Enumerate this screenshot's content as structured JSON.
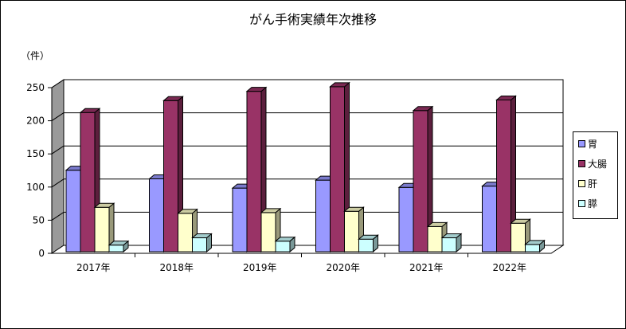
{
  "chart_data": {
    "type": "bar",
    "title": "がん手術実績年次推移",
    "y_unit": "（件）",
    "categories": [
      "2017年",
      "2018年",
      "2019年",
      "2020年",
      "2021年",
      "2022年"
    ],
    "series": [
      {
        "name": "胃",
        "values": [
          123,
          110,
          96,
          108,
          97,
          99
        ],
        "color": "#9999ff"
      },
      {
        "name": "大腸",
        "values": [
          210,
          228,
          242,
          249,
          213,
          229
        ],
        "color": "#993366"
      },
      {
        "name": "肝",
        "values": [
          67,
          58,
          59,
          61,
          38,
          43
        ],
        "color": "#ffffcc"
      },
      {
        "name": "膵",
        "values": [
          10,
          21,
          16,
          19,
          21,
          11
        ],
        "color": "#ccffff"
      }
    ],
    "ylim": [
      0,
      250
    ],
    "yticks": [
      0,
      50,
      100,
      150,
      200,
      250
    ],
    "grid": true,
    "legend_position": "right"
  }
}
